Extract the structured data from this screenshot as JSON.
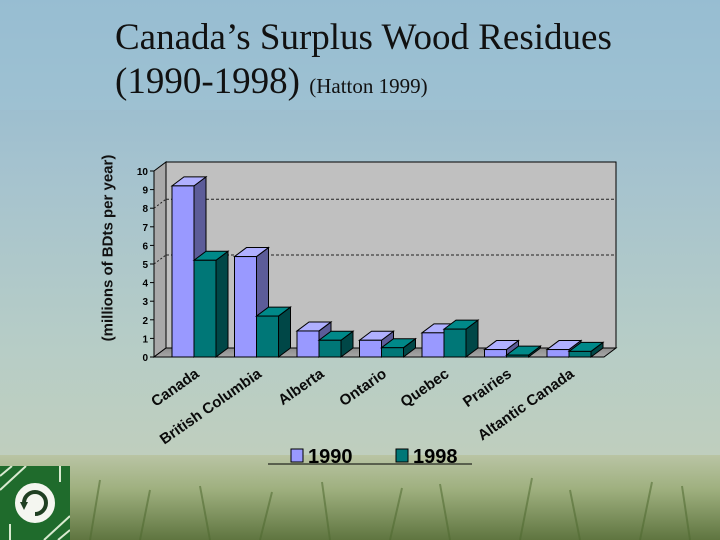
{
  "slide": {
    "title_main": "Canada’s Surplus Wood Residues",
    "title_line2": "(1990-1998)",
    "title_source": "(Hatton 1999)"
  },
  "colors": {
    "series_1990": "#9999ff",
    "series_1998": "#007777",
    "plot_wall": "#c0c0c0"
  },
  "chart_data": {
    "type": "bar",
    "title": "",
    "ylabel": "(millions of BDts per year)",
    "xlabel": "",
    "ylim": [
      0,
      10
    ],
    "yticks": [
      0,
      1,
      2,
      3,
      4,
      5,
      6,
      7,
      8,
      9,
      10
    ],
    "grid": "dashed lines at 5 and 8",
    "legend_position": "bottom",
    "categories": [
      "Canada",
      "British Columbia",
      "Alberta",
      "Ontario",
      "Quebec",
      "Prairies",
      "Altantic Canada"
    ],
    "series": [
      {
        "name": "1990",
        "values": [
          9.2,
          5.4,
          1.4,
          0.9,
          1.3,
          0.4,
          0.4
        ]
      },
      {
        "name": "1998",
        "values": [
          5.2,
          2.2,
          0.9,
          0.5,
          1.5,
          0.1,
          0.3
        ]
      }
    ]
  }
}
